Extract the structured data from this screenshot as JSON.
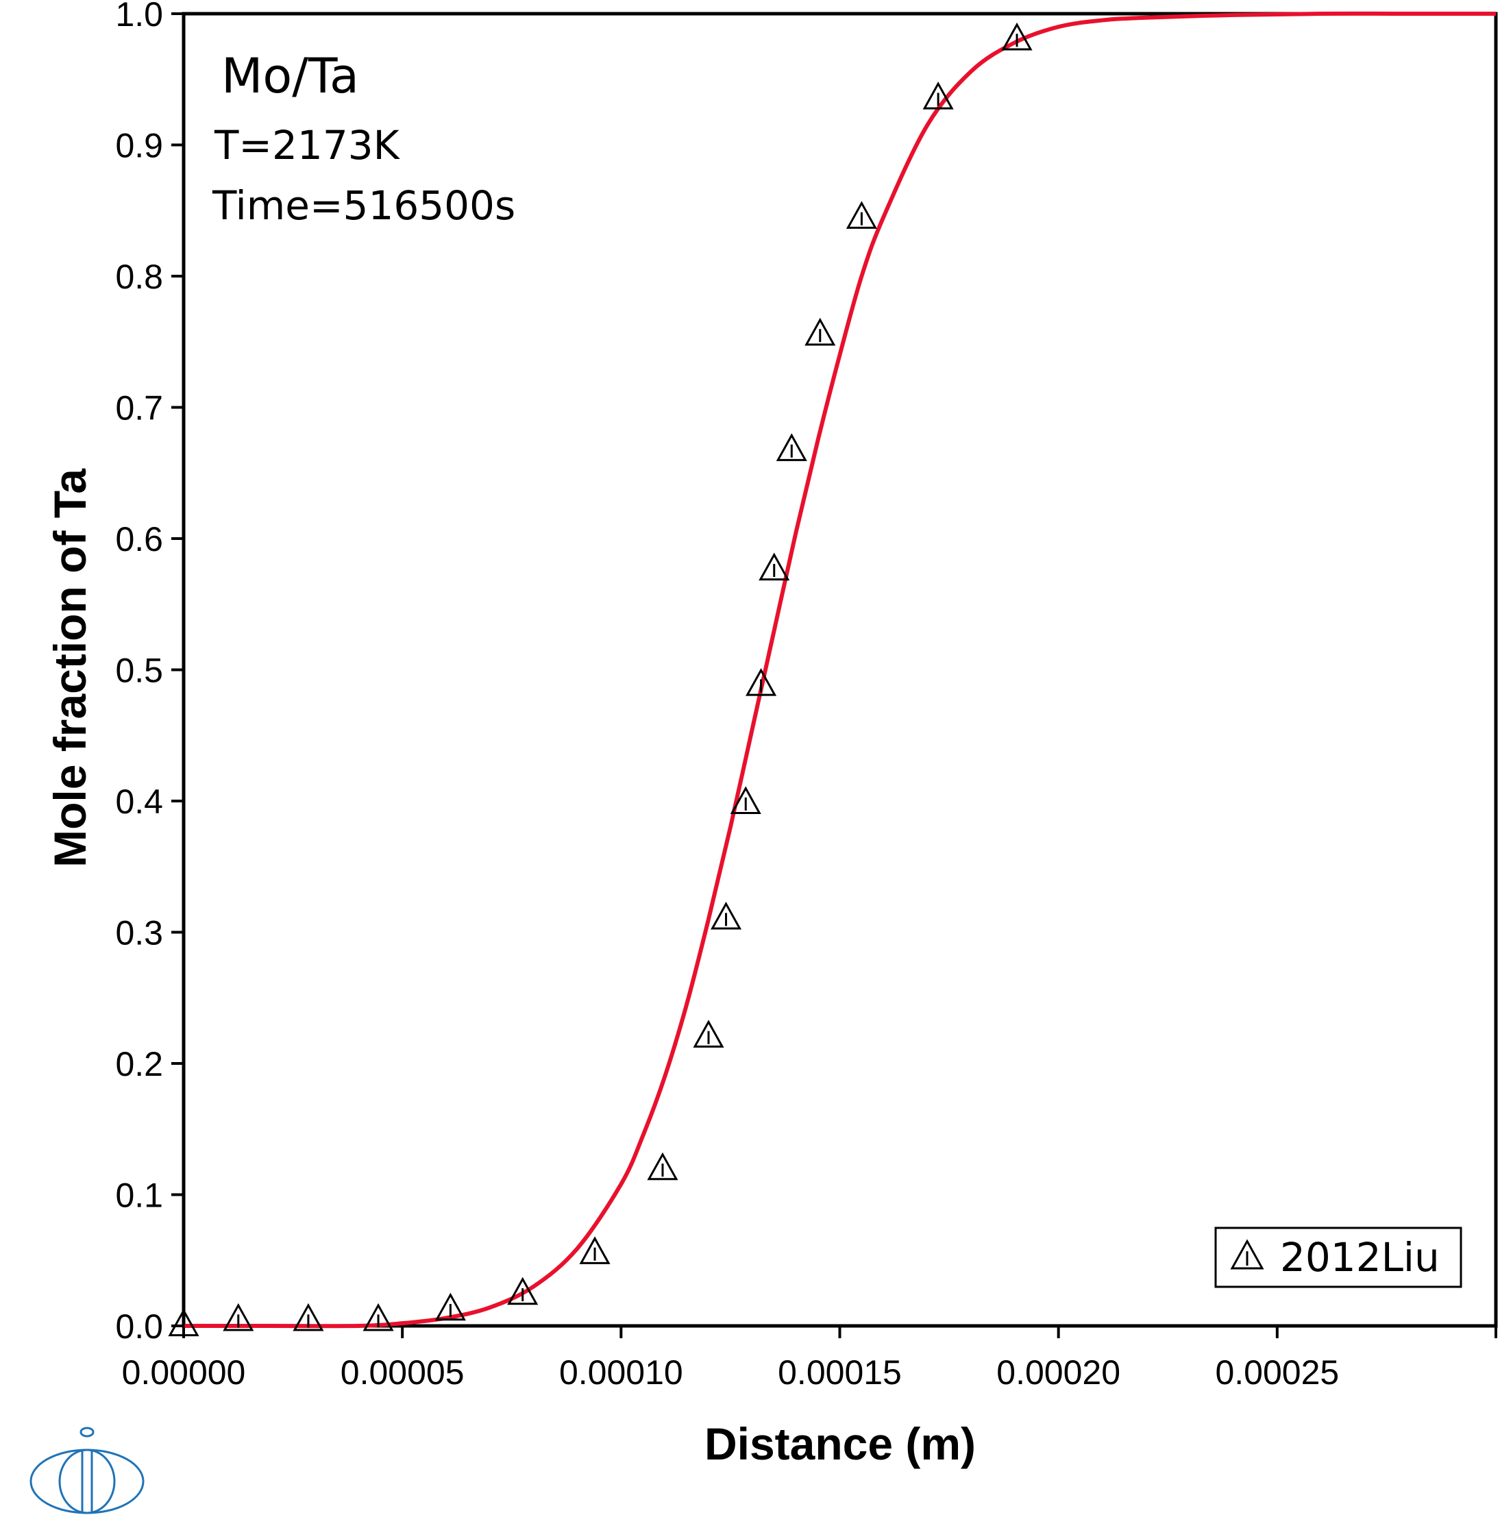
{
  "chart_data": {
    "type": "scatter",
    "title": "",
    "xlabel": "Distance (m)",
    "ylabel": "Mole fraction of Ta",
    "xlim": [
      0,
      0.0003
    ],
    "ylim": [
      0,
      1.0
    ],
    "x_ticks": [
      0,
      5e-05,
      0.0001,
      0.00015,
      0.0002,
      0.00025
    ],
    "x_tick_labels": [
      "0.00000",
      "0.00005",
      "0.00010",
      "0.00015",
      "0.00020",
      "0.00025"
    ],
    "y_ticks": [
      0,
      0.1,
      0.2,
      0.3,
      0.4,
      0.5,
      0.6,
      0.7,
      0.8,
      0.9,
      1.0
    ],
    "y_tick_labels": [
      "0.0",
      "0.1",
      "0.2",
      "0.3",
      "0.4",
      "0.5",
      "0.6",
      "0.7",
      "0.8",
      "0.9",
      "1.0"
    ],
    "grid": false,
    "legend_position": "bottom-right",
    "annotations": [
      "Mo/Ta",
      "T=2173K",
      "Time=516500s"
    ],
    "series": [
      {
        "type": "line",
        "color": "#e8112d",
        "x": [
          0,
          2e-05,
          4e-05,
          5e-05,
          6e-05,
          7e-05,
          8e-05,
          9e-05,
          0.0001,
          0.000105,
          0.00011,
          0.000115,
          0.00012,
          0.000125,
          0.00013,
          0.000135,
          0.00014,
          0.000145,
          0.00015,
          0.000155,
          0.00016,
          0.00017,
          0.00018,
          0.00019,
          0.0002,
          0.00021,
          0.00022,
          0.00024,
          0.00026,
          0.00028,
          0.0003
        ],
        "y": [
          0.0,
          0.0,
          0.0,
          0.002,
          0.006,
          0.014,
          0.03,
          0.059,
          0.108,
          0.145,
          0.19,
          0.245,
          0.31,
          0.38,
          0.455,
          0.53,
          0.605,
          0.675,
          0.74,
          0.8,
          0.845,
          0.915,
          0.956,
          0.978,
          0.99,
          0.995,
          0.997,
          0.999,
          1.0,
          1.0,
          1.0
        ]
      },
      {
        "name": "2012Liu",
        "type": "scatter",
        "marker": "triangle",
        "x": [
          0,
          1.25e-05,
          2.85e-05,
          4.45e-05,
          6.1e-05,
          7.75e-05,
          9.4e-05,
          0.0001095,
          0.00012,
          0.000124,
          0.0001285,
          0.000132,
          0.000135,
          0.000139,
          0.0001455,
          0.000155,
          0.0001725,
          0.0001905
        ],
        "y": [
          0.0,
          0.004,
          0.004,
          0.004,
          0.012,
          0.024,
          0.055,
          0.119,
          0.22,
          0.31,
          0.398,
          0.488,
          0.576,
          0.667,
          0.755,
          0.844,
          0.935,
          0.98
        ]
      }
    ]
  }
}
